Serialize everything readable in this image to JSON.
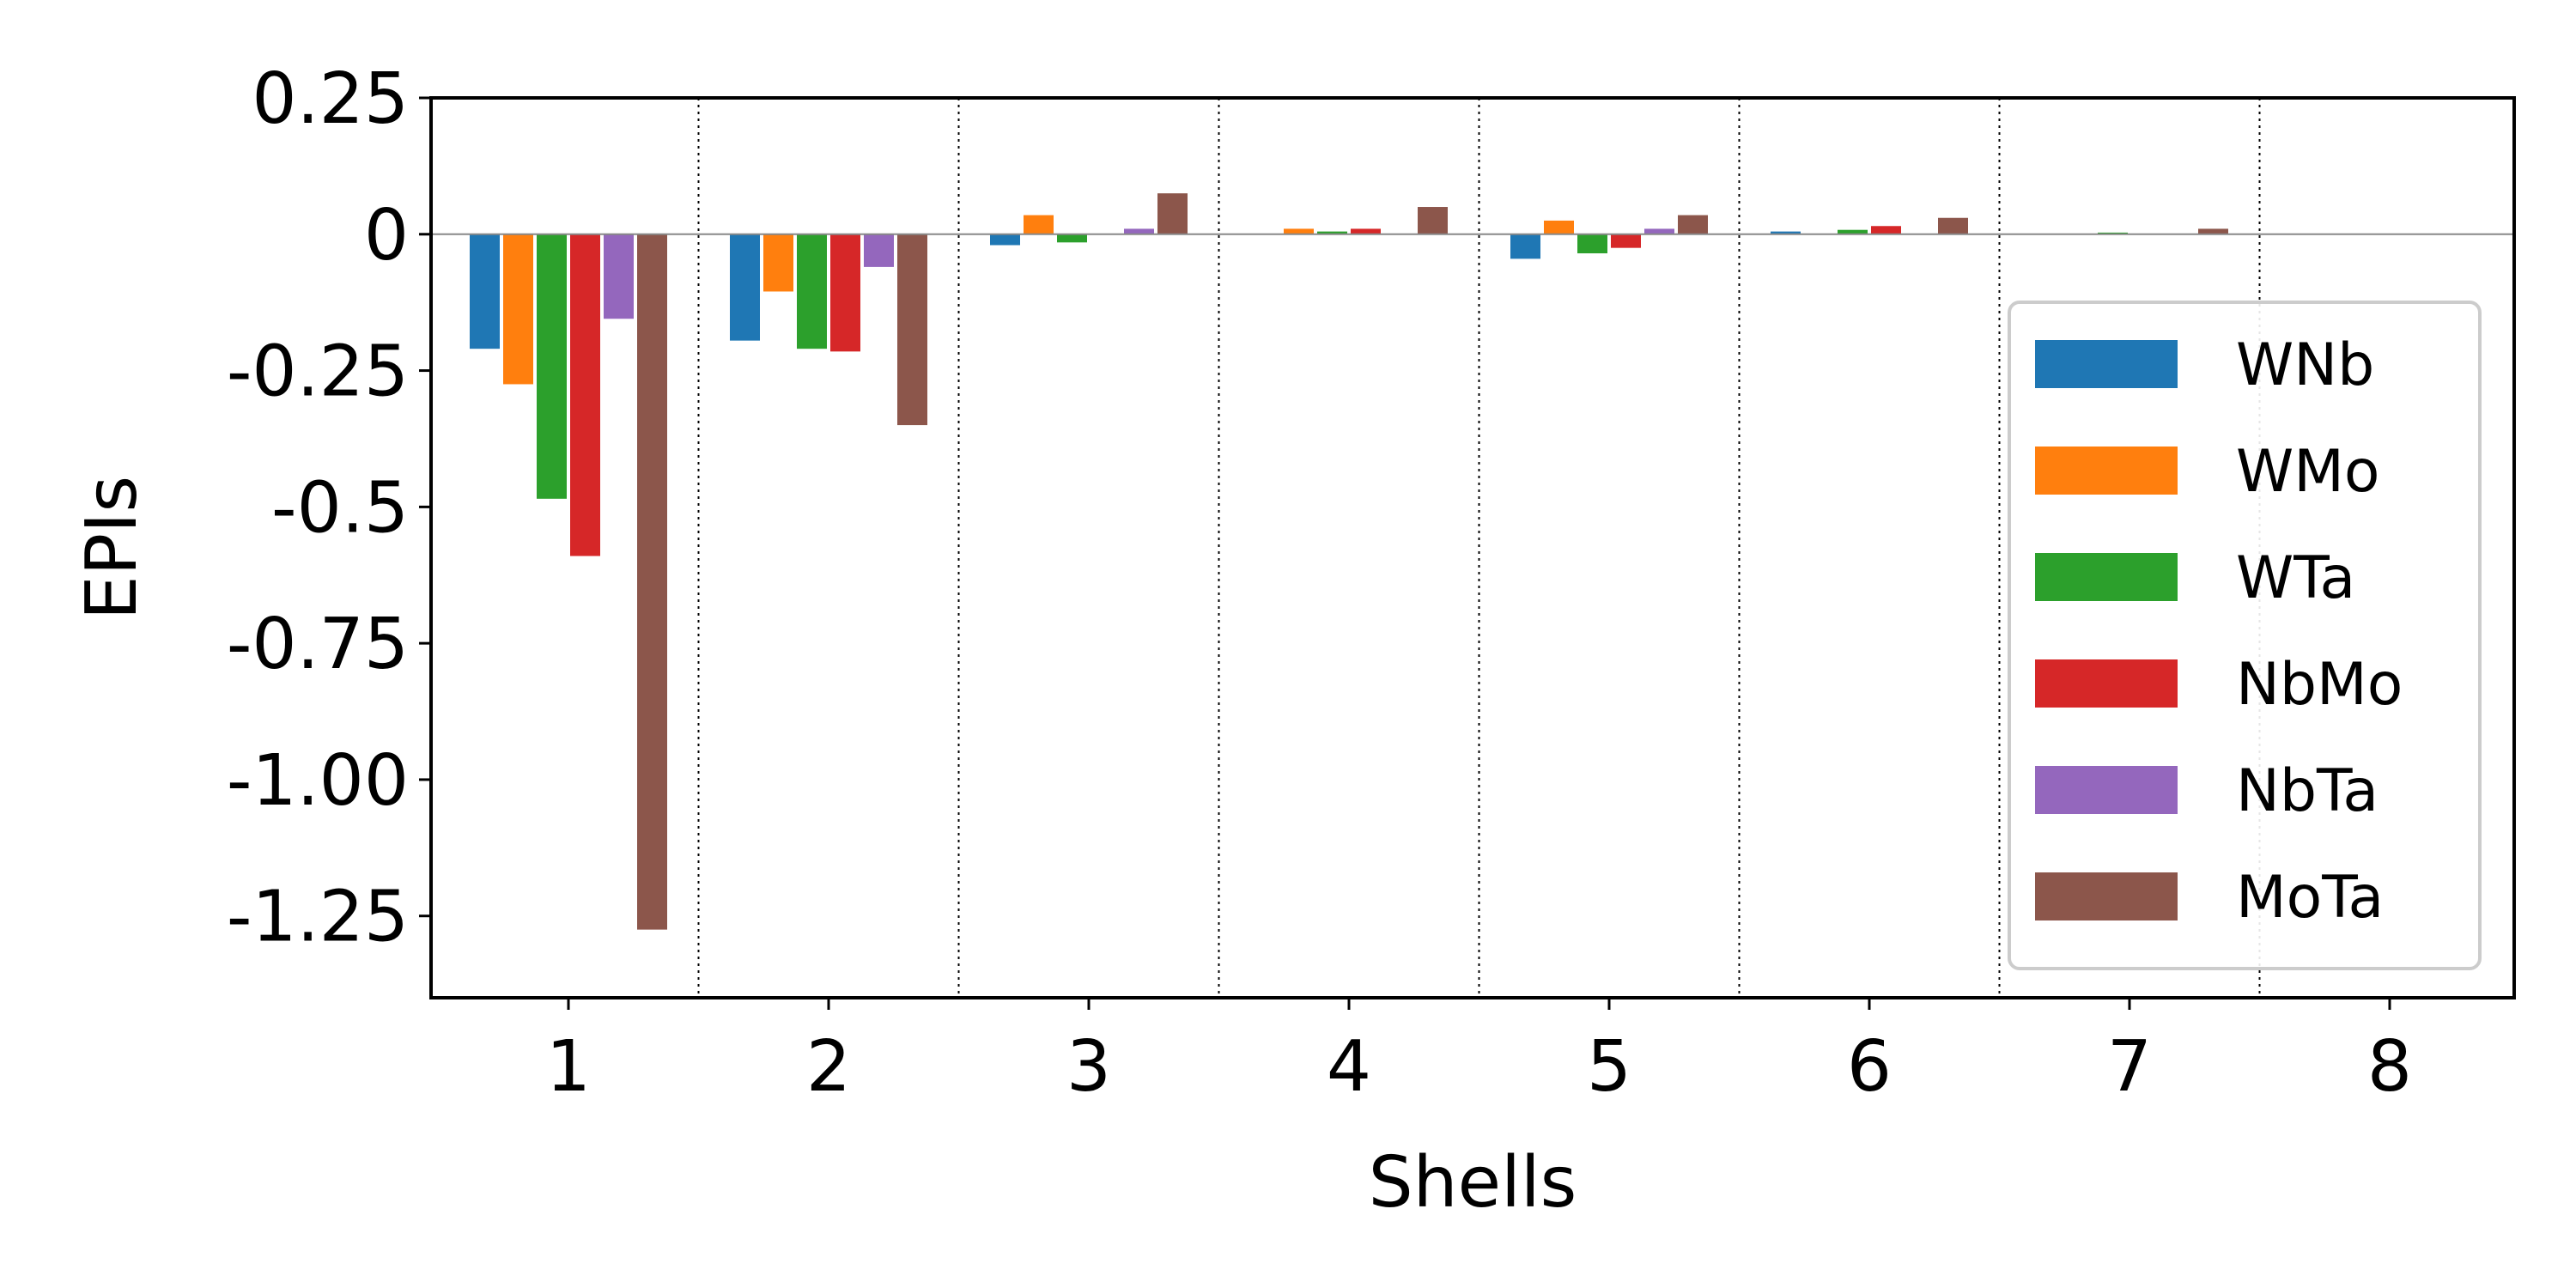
{
  "chart_data": {
    "type": "bar",
    "xlabel": "Shells",
    "ylabel": "EPIs",
    "categories": [
      "1",
      "2",
      "3",
      "4",
      "5",
      "6",
      "7",
      "8"
    ],
    "yticks": [
      "0.25",
      "0",
      "-0.25",
      "-0.5",
      "-0.75",
      "-1.00",
      "-1.25"
    ],
    "ytick_values": [
      0.25,
      0,
      -0.25,
      -0.5,
      -0.75,
      -1.0,
      -1.25
    ],
    "ylim": [
      -1.4,
      0.25
    ],
    "legend_position": "lower-right",
    "shell_separators": "dotted",
    "zero_line": true,
    "series": [
      {
        "name": "WNb",
        "color": "#1f77b4",
        "values": [
          -0.21,
          -0.195,
          -0.02,
          0.0,
          -0.045,
          0.005,
          0.0,
          0.0
        ]
      },
      {
        "name": "WMo",
        "color": "#ff7f0e",
        "values": [
          -0.275,
          -0.105,
          0.035,
          0.01,
          0.025,
          0.0,
          0.0,
          0.0
        ]
      },
      {
        "name": "WTa",
        "color": "#2ca02c",
        "values": [
          -0.485,
          -0.21,
          -0.015,
          0.005,
          -0.035,
          0.008,
          0.003,
          0.0
        ]
      },
      {
        "name": "NbMo",
        "color": "#d62728",
        "values": [
          -0.59,
          -0.215,
          0.0,
          0.01,
          -0.025,
          0.015,
          0.0,
          0.0
        ]
      },
      {
        "name": "NbTa",
        "color": "#9467bd",
        "values": [
          -0.155,
          -0.06,
          0.01,
          0.0,
          0.01,
          0.0,
          0.0,
          0.0
        ]
      },
      {
        "name": "MoTa",
        "color": "#8c564b",
        "values": [
          -1.275,
          -0.35,
          0.075,
          0.05,
          0.035,
          0.03,
          0.01,
          0.0
        ]
      }
    ]
  }
}
